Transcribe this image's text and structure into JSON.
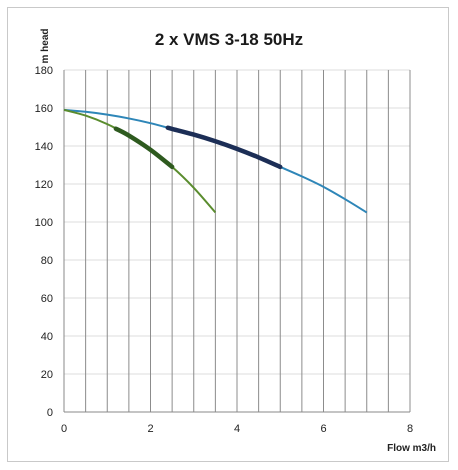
{
  "chart_data": {
    "type": "line",
    "title": "2 x VMS 3-18 50Hz",
    "xlabel": "Flow m3/h",
    "ylabel": "m head",
    "xlim": [
      0,
      8
    ],
    "ylim": [
      0,
      180
    ],
    "xticks": [
      0,
      2,
      4,
      6,
      8
    ],
    "yticks": [
      0,
      20,
      40,
      60,
      80,
      100,
      120,
      140,
      160,
      180
    ],
    "vertical_grid_step": 0.5,
    "grid": true,
    "legend": "none",
    "series": [
      {
        "color": "#2e86b8",
        "points": [
          [
            0,
            159
          ],
          [
            0.5,
            158
          ],
          [
            1,
            156.5
          ],
          [
            1.5,
            154.5
          ],
          [
            2,
            152
          ],
          [
            2.5,
            149
          ],
          [
            3,
            146
          ],
          [
            3.5,
            142.5
          ],
          [
            4,
            138.5
          ],
          [
            4.5,
            134
          ],
          [
            5,
            129
          ],
          [
            5.5,
            124
          ],
          [
            6,
            118.5
          ],
          [
            6.5,
            112
          ],
          [
            7,
            105
          ]
        ],
        "highlight": {
          "color": "#1c2e56",
          "x_range": [
            2.4,
            5
          ]
        }
      },
      {
        "color": "#5a8c2e",
        "points": [
          [
            0,
            159
          ],
          [
            0.5,
            156
          ],
          [
            1,
            151.5
          ],
          [
            1.5,
            145.5
          ],
          [
            2,
            138
          ],
          [
            2.5,
            129
          ],
          [
            3,
            118
          ],
          [
            3.5,
            105
          ]
        ],
        "highlight": {
          "color": "#2e5a1f",
          "x_range": [
            1.2,
            2.5
          ]
        }
      }
    ]
  }
}
